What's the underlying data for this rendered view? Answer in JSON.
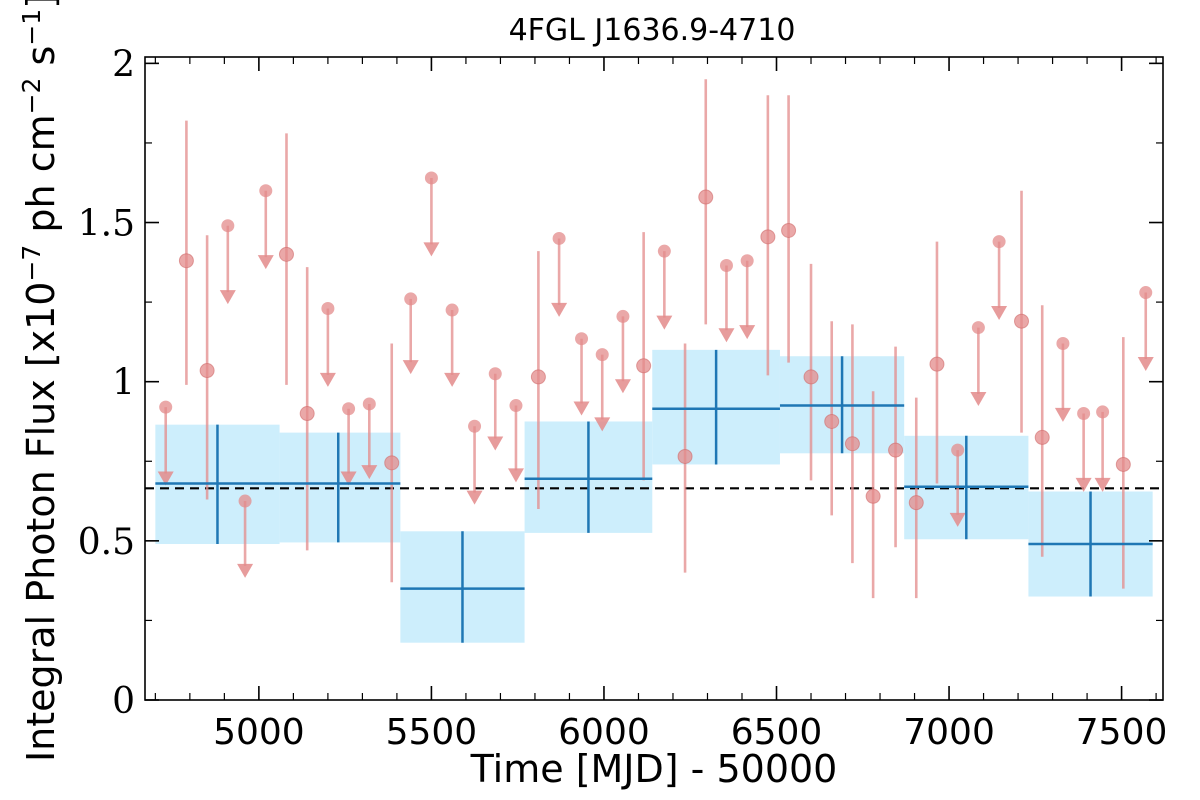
{
  "chart_data": {
    "type": "scatter",
    "title": "4FGL J1636.9-4710",
    "xlabel": "Time [MJD] - 50000",
    "ylabel_parts": [
      "Integral Photon Flux [x10",
      "−7",
      " ph cm",
      "−2",
      " s",
      "−1",
      "]"
    ],
    "xlim": [
      4670,
      7620
    ],
    "ylim": [
      0,
      2.02
    ],
    "x_ticks": [
      5000,
      5500,
      6000,
      6500,
      7000,
      7500
    ],
    "y_ticks": [
      0,
      0.5,
      1,
      1.5,
      2
    ],
    "x_tick_labels": [
      "5000",
      "5500",
      "6000",
      "6500",
      "7000",
      "7500"
    ],
    "y_tick_labels": [
      "0",
      "0.5",
      "1",
      "1.5",
      "2"
    ],
    "mean_flux": 0.665,
    "colors": {
      "short_bins": "#e38b8b",
      "long_bins_line": "#1f77b4",
      "long_bins_fill": "#cdeefc",
      "mean_line": "#000000"
    },
    "long_bins": [
      {
        "x0": 4700,
        "x1": 5060,
        "x": 4880,
        "y": 0.68,
        "ylo": 0.49,
        "yhi": 0.865
      },
      {
        "x0": 5060,
        "x1": 5410,
        "x": 5230,
        "y": 0.68,
        "ylo": 0.495,
        "yhi": 0.84
      },
      {
        "x0": 5410,
        "x1": 5770,
        "x": 5590,
        "y": 0.35,
        "ylo": 0.18,
        "yhi": 0.53
      },
      {
        "x0": 5770,
        "x1": 6140,
        "x": 5955,
        "y": 0.695,
        "ylo": 0.525,
        "yhi": 0.875
      },
      {
        "x0": 6140,
        "x1": 6510,
        "x": 6325,
        "y": 0.915,
        "ylo": 0.74,
        "yhi": 1.1
      },
      {
        "x0": 6510,
        "x1": 6870,
        "x": 6690,
        "y": 0.925,
        "ylo": 0.775,
        "yhi": 1.08
      },
      {
        "x0": 6870,
        "x1": 7230,
        "x": 7050,
        "y": 0.67,
        "ylo": 0.505,
        "yhi": 0.83
      },
      {
        "x0": 7230,
        "x1": 7590,
        "x": 7410,
        "y": 0.49,
        "ylo": 0.325,
        "yhi": 0.655
      }
    ],
    "short_bins": [
      {
        "x": 4730,
        "y": 0.92,
        "ul": true,
        "arrow_to": 0.68
      },
      {
        "x": 4790,
        "y": 1.38,
        "ylo": 0.99,
        "yhi": 1.82
      },
      {
        "x": 4850,
        "y": 1.035,
        "ylo": 0.63,
        "yhi": 1.46
      },
      {
        "x": 4910,
        "y": 1.49,
        "ul": true,
        "arrow_to": 1.25
      },
      {
        "x": 4960,
        "y": 0.625,
        "ul": true,
        "arrow_to": 0.39
      },
      {
        "x": 5020,
        "y": 1.6,
        "ul": true,
        "arrow_to": 1.36
      },
      {
        "x": 5080,
        "y": 1.4,
        "ylo": 0.99,
        "yhi": 1.78
      },
      {
        "x": 5140,
        "y": 0.9,
        "ylo": 0.47,
        "yhi": 1.36
      },
      {
        "x": 5200,
        "y": 1.23,
        "ul": true,
        "arrow_to": 0.99
      },
      {
        "x": 5260,
        "y": 0.915,
        "ul": true,
        "arrow_to": 0.68
      },
      {
        "x": 5320,
        "y": 0.93,
        "ul": true,
        "arrow_to": 0.7
      },
      {
        "x": 5385,
        "y": 0.745,
        "ylo": 0.37,
        "yhi": 1.12
      },
      {
        "x": 5440,
        "y": 1.26,
        "ul": true,
        "arrow_to": 1.03
      },
      {
        "x": 5500,
        "y": 1.64,
        "ul": true,
        "arrow_to": 1.4
      },
      {
        "x": 5560,
        "y": 1.225,
        "ul": true,
        "arrow_to": 0.99
      },
      {
        "x": 5625,
        "y": 0.86,
        "ul": true,
        "arrow_to": 0.62
      },
      {
        "x": 5685,
        "y": 1.025,
        "ul": true,
        "arrow_to": 0.79
      },
      {
        "x": 5745,
        "y": 0.925,
        "ul": true,
        "arrow_to": 0.69
      },
      {
        "x": 5810,
        "y": 1.015,
        "ylo": 0.6,
        "yhi": 1.41
      },
      {
        "x": 5870,
        "y": 1.45,
        "ul": true,
        "arrow_to": 1.21
      },
      {
        "x": 5935,
        "y": 1.135,
        "ul": true,
        "arrow_to": 0.9
      },
      {
        "x": 5995,
        "y": 1.085,
        "ul": true,
        "arrow_to": 0.85
      },
      {
        "x": 6055,
        "y": 1.205,
        "ul": true,
        "arrow_to": 0.97
      },
      {
        "x": 6115,
        "y": 1.05,
        "ylo": 0.69,
        "yhi": 1.47
      },
      {
        "x": 6175,
        "y": 1.41,
        "ul": true,
        "arrow_to": 1.17
      },
      {
        "x": 6235,
        "y": 0.765,
        "ylo": 0.4,
        "yhi": 1.12
      },
      {
        "x": 6295,
        "y": 1.58,
        "ylo": 1.18,
        "yhi": 1.95
      },
      {
        "x": 6355,
        "y": 1.365,
        "ul": true,
        "arrow_to": 1.13
      },
      {
        "x": 6415,
        "y": 1.38,
        "ul": true,
        "arrow_to": 1.14
      },
      {
        "x": 6475,
        "y": 1.455,
        "ylo": 1.02,
        "yhi": 1.9
      },
      {
        "x": 6535,
        "y": 1.475,
        "ylo": 1.06,
        "yhi": 1.9
      },
      {
        "x": 6600,
        "y": 1.015,
        "ylo": 0.69,
        "yhi": 1.37
      },
      {
        "x": 6660,
        "y": 0.875,
        "ylo": 0.58,
        "yhi": 1.19
      },
      {
        "x": 6720,
        "y": 0.805,
        "ylo": 0.43,
        "yhi": 1.18
      },
      {
        "x": 6780,
        "y": 0.64,
        "ylo": 0.32,
        "yhi": 0.97
      },
      {
        "x": 6845,
        "y": 0.785,
        "ylo": 0.48,
        "yhi": 1.11
      },
      {
        "x": 6905,
        "y": 0.62,
        "ylo": 0.32,
        "yhi": 0.95
      },
      {
        "x": 6965,
        "y": 1.055,
        "ylo": 0.68,
        "yhi": 1.44
      },
      {
        "x": 7025,
        "y": 0.785,
        "ul": true,
        "arrow_to": 0.55
      },
      {
        "x": 7085,
        "y": 1.17,
        "ul": true,
        "arrow_to": 0.93
      },
      {
        "x": 7145,
        "y": 1.44,
        "ul": true,
        "arrow_to": 1.2
      },
      {
        "x": 7210,
        "y": 1.19,
        "ylo": 0.84,
        "yhi": 1.6
      },
      {
        "x": 7270,
        "y": 0.825,
        "ylo": 0.45,
        "yhi": 1.24
      },
      {
        "x": 7330,
        "y": 1.12,
        "ul": true,
        "arrow_to": 0.88
      },
      {
        "x": 7390,
        "y": 0.9,
        "ul": true,
        "arrow_to": 0.66
      },
      {
        "x": 7445,
        "y": 0.905,
        "ul": true,
        "arrow_to": 0.66
      },
      {
        "x": 7505,
        "y": 0.74,
        "ylo": 0.35,
        "yhi": 1.14
      },
      {
        "x": 7570,
        "y": 1.28,
        "ul": true,
        "arrow_to": 1.04
      }
    ]
  }
}
